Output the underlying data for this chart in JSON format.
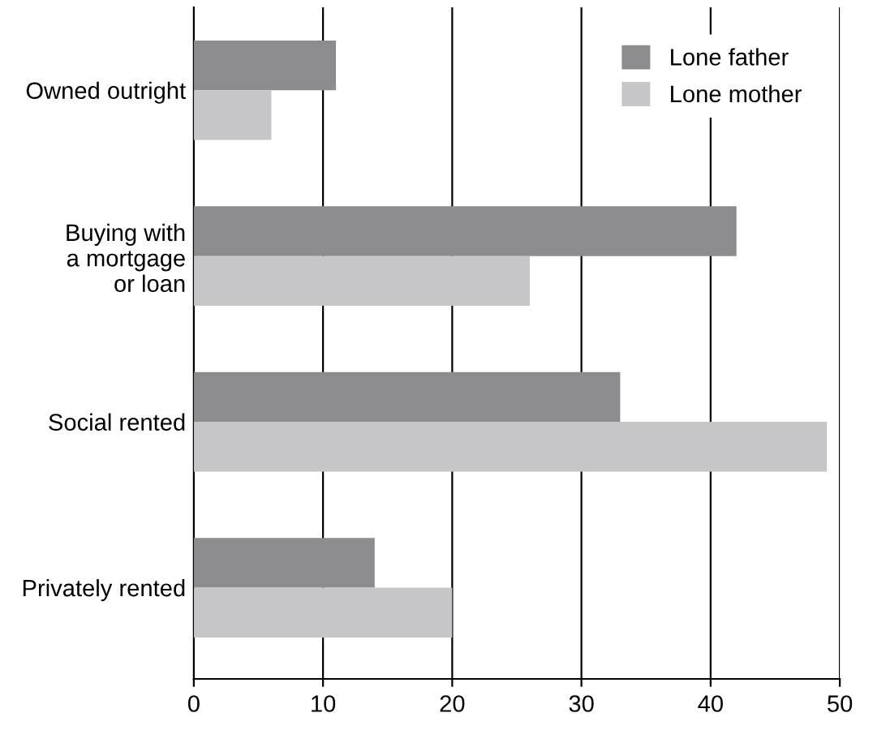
{
  "chart_data": {
    "type": "bar",
    "orientation": "horizontal",
    "categories": [
      "Owned outright",
      "Buying with\na mortgage\nor loan",
      "Social rented",
      "Privately rented"
    ],
    "series": [
      {
        "name": "Lone father",
        "color": "#8c8c8e",
        "values": [
          11,
          42,
          33,
          14
        ]
      },
      {
        "name": "Lone mother",
        "color": "#c6c6c8",
        "values": [
          6,
          26,
          49,
          20
        ]
      }
    ],
    "xlim": [
      0,
      50
    ],
    "xticks": [
      0,
      10,
      20,
      30,
      40,
      50
    ],
    "grid": "x",
    "legend": "top right"
  }
}
